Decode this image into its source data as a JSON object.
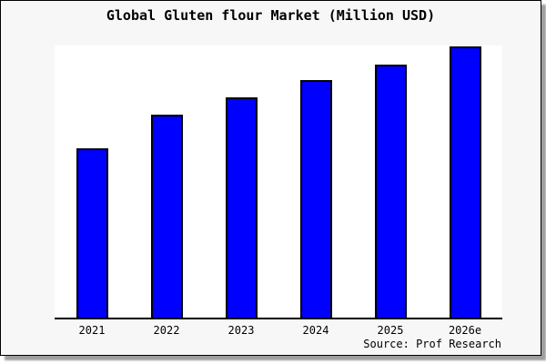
{
  "chart_data": {
    "type": "bar",
    "title": "Global Gluten flour Market (Million USD)",
    "categories": [
      "2021",
      "2022",
      "2023",
      "2024",
      "2025",
      "2026e"
    ],
    "values": [
      62.5,
      74.8,
      81.1,
      87.4,
      93.4,
      100.0
    ],
    "value_note": "y-axis has no ticks or labels; values estimated from bar heights, normalized to 2026e = 100",
    "xlabel": "",
    "ylabel": "",
    "ylim": [
      0,
      100.3
    ],
    "grid": false,
    "legend": false,
    "source_label": "Source: Prof Research"
  },
  "colors": {
    "bar_fill": "#0000FF",
    "bar_border": "#000000",
    "plot_background": "#FFFFFF",
    "canvas_background": "#F7F7F7",
    "frame_border": "#000000",
    "shadow": "#9E9E9E",
    "text": "#000000"
  }
}
